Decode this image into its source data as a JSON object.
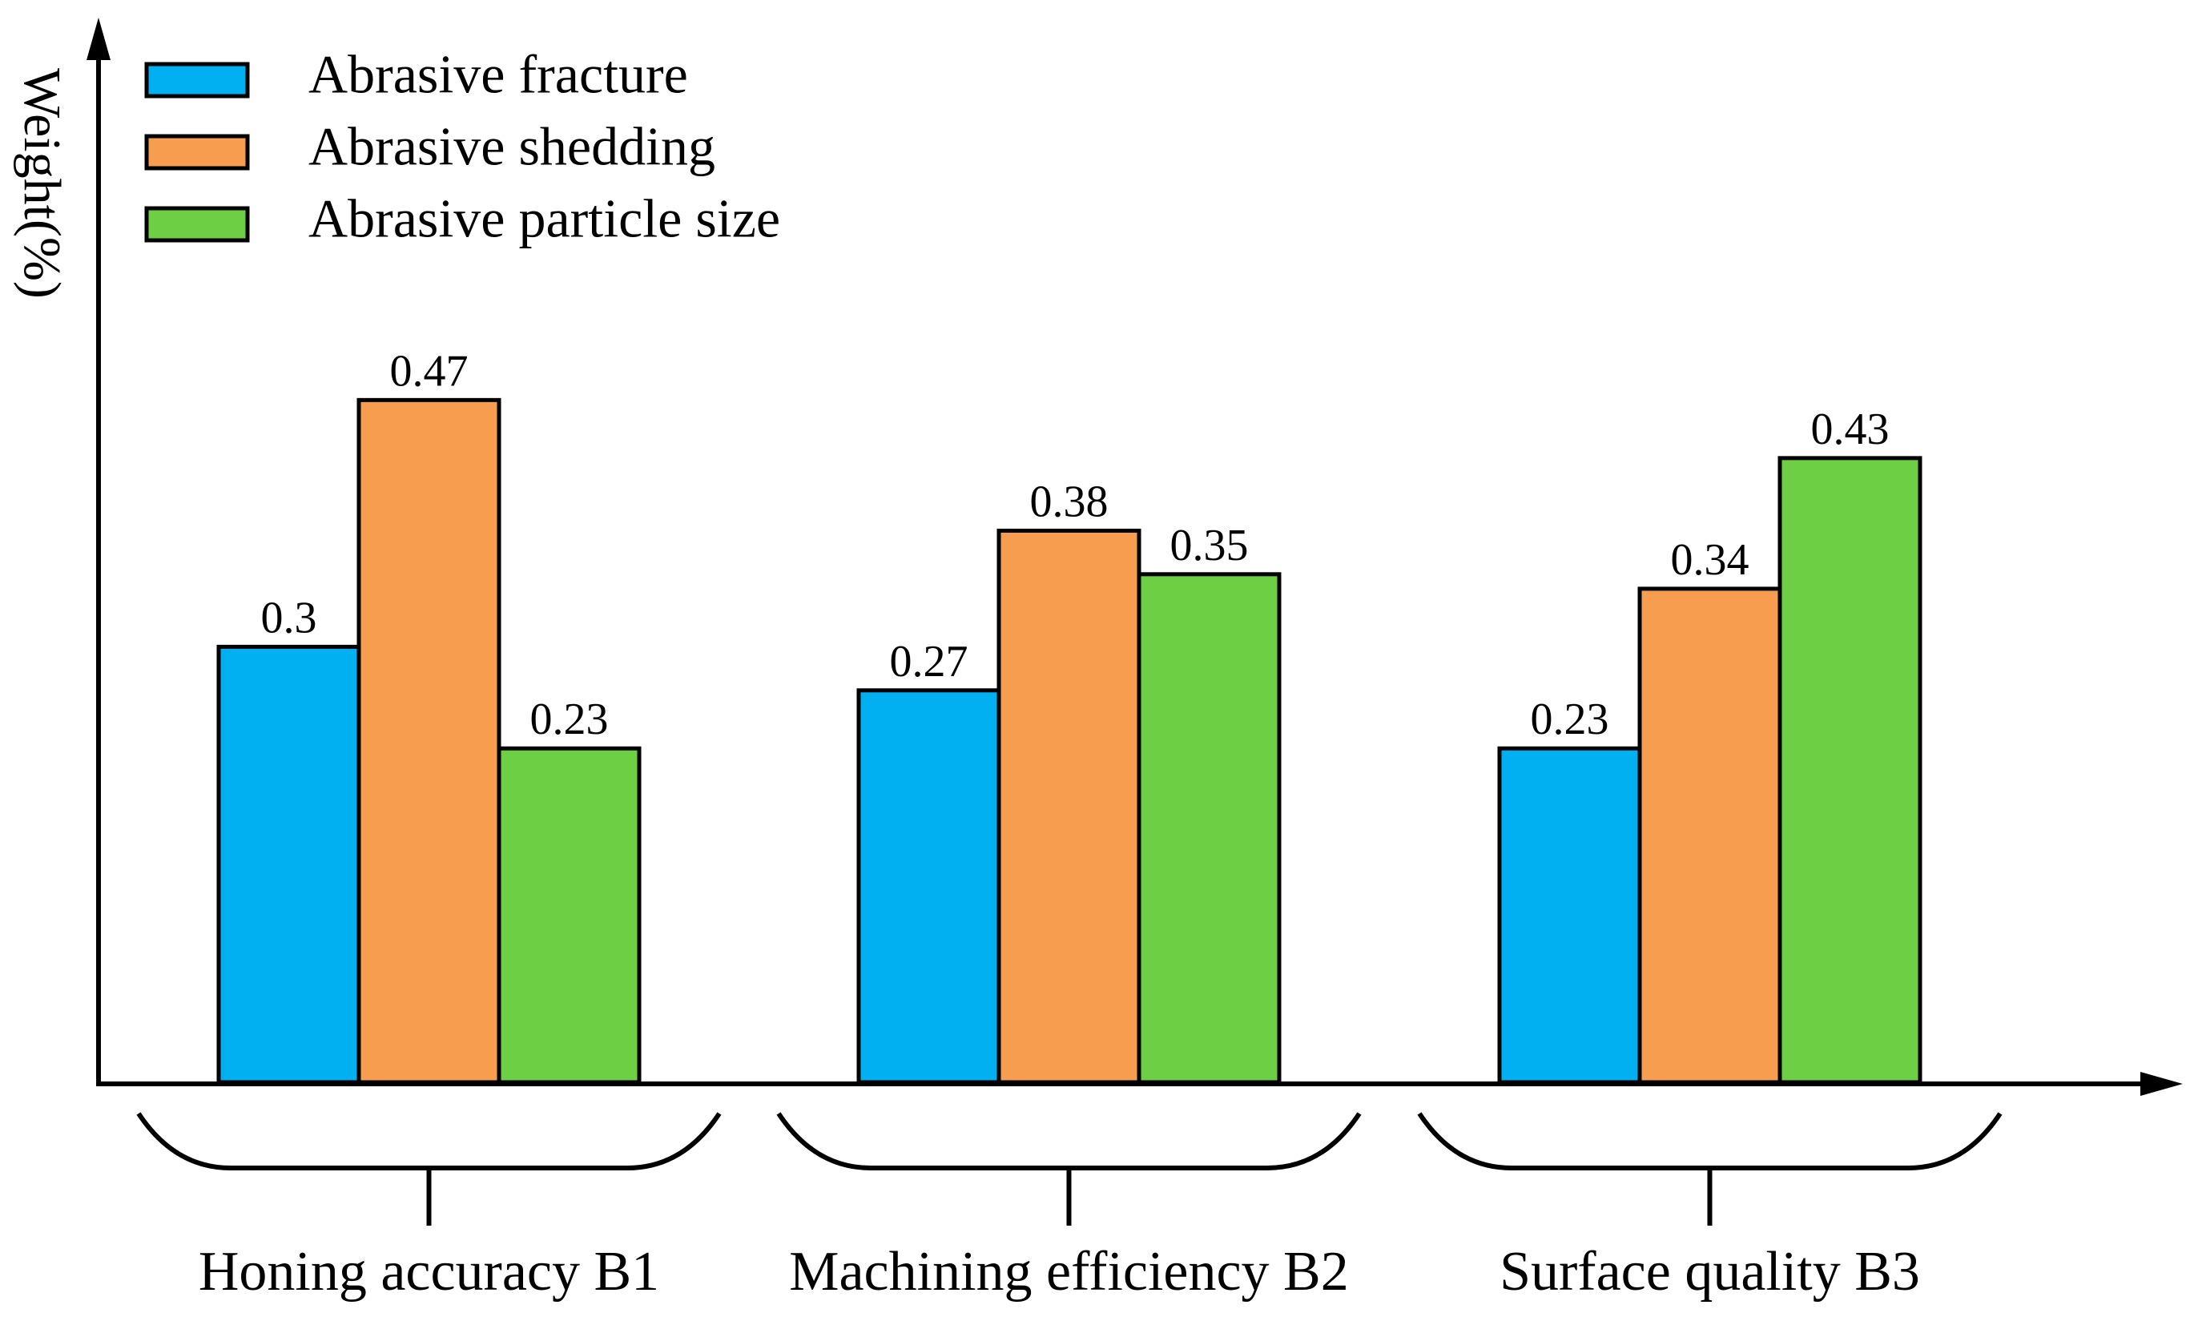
{
  "chart_data": {
    "type": "bar",
    "title": "",
    "xlabel": "",
    "ylabel": "Weight(%)",
    "ylim": [
      0,
      0.47
    ],
    "grid": false,
    "legend_position": "top-left",
    "categories": [
      "Honing accuracy B1",
      "Machining efficiency B2",
      "Surface quality B3"
    ],
    "series": [
      {
        "name": "Abrasive fracture",
        "color": "#00B0F0",
        "values": [
          0.3,
          0.27,
          0.23
        ],
        "labels": [
          "0.3",
          "0.27",
          "0.23"
        ]
      },
      {
        "name": "Abrasive shedding",
        "color": "#F79D50",
        "values": [
          0.47,
          0.38,
          0.34
        ],
        "labels": [
          "0.47",
          "0.38",
          "0.34"
        ]
      },
      {
        "name": "Abrasive particle size",
        "color": "#6DCF43",
        "values": [
          0.23,
          0.35,
          0.43
        ],
        "labels": [
          "0.23",
          "0.35",
          "0.43"
        ]
      }
    ]
  }
}
